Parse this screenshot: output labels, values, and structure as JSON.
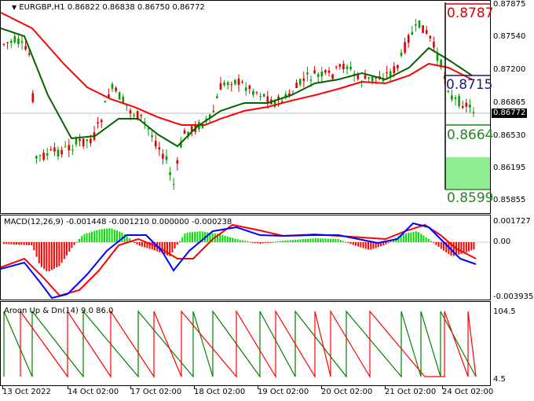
{
  "chart": {
    "symbol_line": "EURGBP,H1",
    "ohlc": [
      "0.86822",
      "0.86838",
      "0.86750",
      "0.86772"
    ],
    "current_price": "0.86772",
    "price_axis": [
      "0.87875",
      "0.87540",
      "0.87200",
      "0.86865",
      "0.86530",
      "0.86195",
      "0.85855"
    ],
    "levels": {
      "top": "0.8787",
      "middle": "0.8715",
      "lower": "0.8664",
      "bottom": "0.8599"
    },
    "colors": {
      "bull": "#00a000",
      "bear": "#e00000",
      "ma_fast": "#006400",
      "ma_slow": "#ff0000",
      "zone": "#90ee90"
    }
  },
  "macd": {
    "title": "MACD(12,26,9)",
    "values": [
      "-0.001448",
      "-0.001210",
      "0.000000",
      "-0.000238"
    ],
    "axis": [
      "0.001727",
      "0.00",
      "-0.003935"
    ],
    "colors": {
      "macd_line": "#0000ff",
      "signal_line": "#ff0000",
      "hist_pos": "#00e000",
      "hist_neg": "#ff0000"
    }
  },
  "aroon": {
    "title": "Aroon Up & Dn(14) 9.0 86.0",
    "axis": [
      "104.5",
      "4.5"
    ],
    "colors": {
      "up": "#008000",
      "down": "#ff0000"
    }
  },
  "time_axis": [
    "13 Oct 2022",
    "14 Oct 02:00",
    "17 Oct 02:00",
    "18 Oct 02:00",
    "19 Oct 02:00",
    "20 Oct 02:00",
    "21 Oct 02:00",
    "24 Oct 02:00"
  ]
}
